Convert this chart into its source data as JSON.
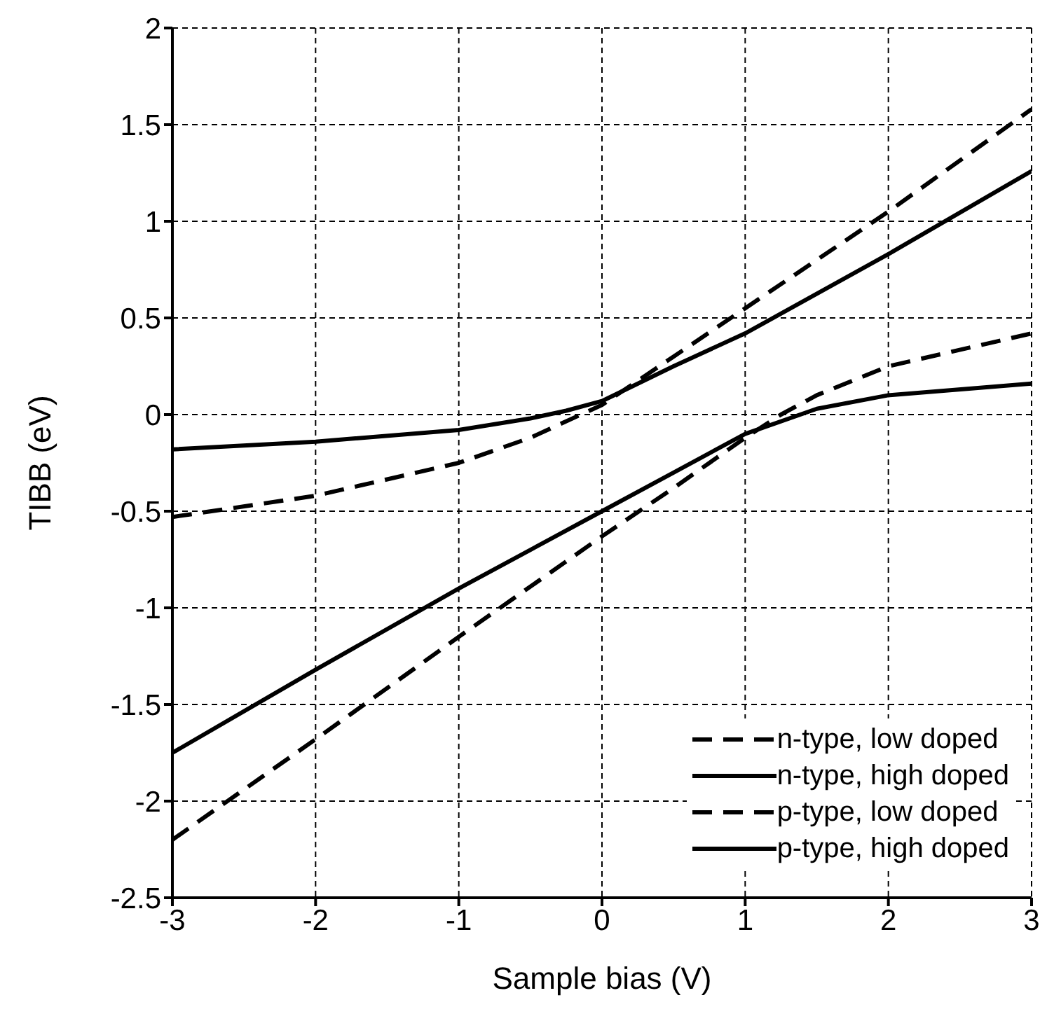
{
  "chart_data": {
    "type": "line",
    "xlabel": "Sample bias (V)",
    "ylabel": "TIBB (eV)",
    "xlim": [
      -3,
      3
    ],
    "xticks": [
      -3,
      -2,
      -1,
      0,
      1,
      2,
      3
    ],
    "ylim": [
      -2.5,
      2
    ],
    "yticks": [
      -2.5,
      -2,
      -1.5,
      -1,
      -0.5,
      0,
      0.5,
      1,
      1.5,
      2
    ],
    "grid": true,
    "legend": "bottom right",
    "marker": "none",
    "series": [
      {
        "name": "n-type, low doped",
        "color": "#000000",
        "line_style": "dashed",
        "x": [
          -3,
          -2,
          -1,
          -0.5,
          0,
          0.5,
          1,
          2,
          3
        ],
        "values": [
          -0.53,
          -0.42,
          -0.25,
          -0.12,
          0.05,
          0.3,
          0.55,
          1.05,
          1.58
        ]
      },
      {
        "name": "n-type, high doped",
        "color": "#000000",
        "line_style": "solid",
        "x": [
          -3,
          -2,
          -1,
          -0.5,
          -0.25,
          0,
          0.5,
          1,
          2,
          3
        ],
        "values": [
          -0.18,
          -0.14,
          -0.08,
          -0.02,
          0.02,
          0.07,
          0.25,
          0.42,
          0.83,
          1.26
        ]
      },
      {
        "name": "p-type, low doped",
        "color": "#000000",
        "line_style": "dashed",
        "x": [
          -3,
          -2,
          -1,
          0,
          0.5,
          1,
          1.25,
          1.5,
          2,
          3
        ],
        "values": [
          -2.2,
          -1.68,
          -1.15,
          -0.63,
          -0.38,
          -0.12,
          0,
          0.1,
          0.25,
          0.42
        ]
      },
      {
        "name": "p-type, high doped",
        "color": "#000000",
        "line_style": "solid",
        "x": [
          -3,
          -2,
          -1,
          0,
          0.5,
          1,
          1.5,
          2,
          3
        ],
        "values": [
          -1.75,
          -1.32,
          -0.9,
          -0.5,
          -0.3,
          -0.1,
          0.03,
          0.1,
          0.16
        ]
      }
    ]
  }
}
